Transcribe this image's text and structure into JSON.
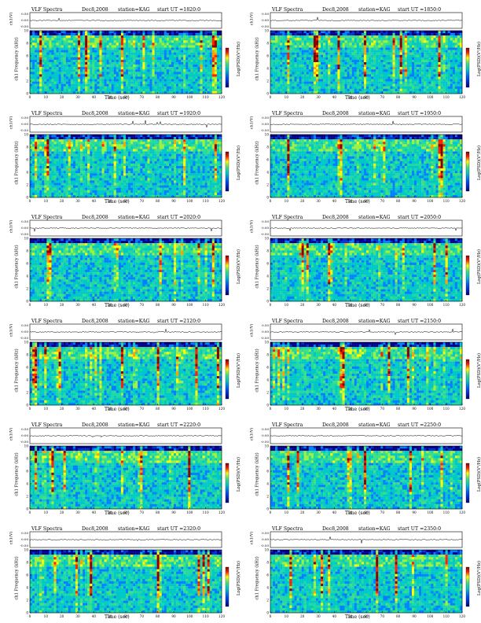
{
  "header": {
    "title": "VLF Spectra",
    "date": "Dec8,2008",
    "station": "station=KAG",
    "start_prefix": "start  UT  ="
  },
  "labels": {
    "ch_axis": "ch1(V)",
    "freq_axis": "Frequency (kHz)",
    "ch_label": "ch1",
    "colorbar": "Log(PSD)(V²/Hz)",
    "time_axis": "Time  (sec)"
  },
  "colors": {
    "low": "#00008b",
    "mid": "#00c8c8",
    "high": "#ffff00",
    "peak": "#8b0000"
  },
  "chart_data": [
    {
      "type": "heatmap",
      "start": "1820:0",
      "xlim": [
        0,
        120
      ],
      "ylim": [
        0,
        10
      ],
      "ch_ticks": [
        "0.50",
        "0.00",
        "-0.50"
      ],
      "x_ticks": [
        0,
        10,
        20,
        30,
        40,
        50,
        60,
        70,
        80,
        90,
        100,
        110,
        120
      ],
      "y_ticks": [
        0,
        2,
        4,
        6,
        8,
        10
      ]
    },
    {
      "type": "heatmap",
      "start": "1850:0",
      "xlim": [
        0,
        120
      ],
      "ylim": [
        0,
        10
      ],
      "ch_ticks": [
        "0.50",
        "0.00",
        "-0.50"
      ],
      "x_ticks": [
        0,
        10,
        20,
        30,
        40,
        50,
        60,
        70,
        80,
        90,
        100,
        110,
        120
      ],
      "y_ticks": [
        0,
        2,
        4,
        6,
        8,
        10
      ]
    },
    {
      "type": "heatmap",
      "start": "1920:0",
      "xlim": [
        0,
        120
      ],
      "ylim": [
        0,
        10
      ],
      "ch_ticks": [
        "0.50",
        "0.00",
        "-0.50"
      ],
      "x_ticks": [
        0,
        10,
        20,
        30,
        40,
        50,
        60,
        70,
        80,
        90,
        100,
        110,
        120
      ],
      "y_ticks": [
        0,
        2,
        4,
        6,
        8,
        10
      ]
    },
    {
      "type": "heatmap",
      "start": "1950:0",
      "xlim": [
        0,
        120
      ],
      "ylim": [
        0,
        10
      ],
      "ch_ticks": [
        "0.50",
        "0.00",
        "-0.50"
      ],
      "x_ticks": [
        0,
        10,
        20,
        30,
        40,
        50,
        60,
        70,
        80,
        90,
        100,
        110,
        120
      ],
      "y_ticks": [
        0,
        2,
        4,
        6,
        8,
        10
      ]
    },
    {
      "type": "heatmap",
      "start": "2020:0",
      "xlim": [
        0,
        120
      ],
      "ylim": [
        0,
        10
      ],
      "ch_ticks": [
        "0.50",
        "0.00",
        "-0.50"
      ],
      "x_ticks": [
        0,
        10,
        20,
        30,
        40,
        50,
        60,
        70,
        80,
        90,
        100,
        110,
        120
      ],
      "y_ticks": [
        0,
        2,
        4,
        6,
        8,
        10
      ]
    },
    {
      "type": "heatmap",
      "start": "2050:0",
      "xlim": [
        0,
        120
      ],
      "ylim": [
        0,
        10
      ],
      "ch_ticks": [
        "0.50",
        "0.00",
        "-0.50"
      ],
      "x_ticks": [
        0,
        10,
        20,
        30,
        40,
        50,
        60,
        70,
        80,
        90,
        100,
        110,
        120
      ],
      "y_ticks": [
        0,
        2,
        4,
        6,
        8,
        10
      ]
    },
    {
      "type": "heatmap",
      "start": "2120:0",
      "xlim": [
        0,
        120
      ],
      "ylim": [
        0,
        10
      ],
      "ch_ticks": [
        "0.50",
        "0.00",
        "-0.50"
      ],
      "x_ticks": [
        0,
        10,
        20,
        30,
        40,
        50,
        60,
        70,
        80,
        90,
        100,
        110,
        120
      ],
      "y_ticks": [
        0,
        2,
        4,
        6,
        8,
        10
      ]
    },
    {
      "type": "heatmap",
      "start": "2150:0",
      "xlim": [
        0,
        120
      ],
      "ylim": [
        0,
        10
      ],
      "ch_ticks": [
        "0.50",
        "0.00",
        "-0.50"
      ],
      "x_ticks": [
        0,
        10,
        20,
        30,
        40,
        50,
        60,
        70,
        80,
        90,
        100,
        110,
        120
      ],
      "y_ticks": [
        0,
        2,
        4,
        6,
        8,
        10
      ]
    },
    {
      "type": "heatmap",
      "start": "2220:0",
      "xlim": [
        0,
        120
      ],
      "ylim": [
        0,
        10
      ],
      "ch_ticks": [
        "0.50",
        "0.00",
        "-0.50"
      ],
      "x_ticks": [
        0,
        10,
        20,
        30,
        40,
        50,
        60,
        70,
        80,
        90,
        100,
        110,
        120
      ],
      "y_ticks": [
        0,
        2,
        4,
        6,
        8,
        10
      ]
    },
    {
      "type": "heatmap",
      "start": "2250:0",
      "xlim": [
        0,
        120
      ],
      "ylim": [
        0,
        10
      ],
      "ch_ticks": [
        "0.50",
        "0.00",
        "-0.50"
      ],
      "x_ticks": [
        0,
        10,
        20,
        30,
        40,
        50,
        60,
        70,
        80,
        90,
        100,
        110,
        120
      ],
      "y_ticks": [
        0,
        2,
        4,
        6,
        8,
        10
      ]
    },
    {
      "type": "heatmap",
      "start": "2320:0",
      "xlim": [
        0,
        120
      ],
      "ylim": [
        0,
        10
      ],
      "ch_ticks": [
        "0.50",
        "0.00",
        "-0.50"
      ],
      "x_ticks": [
        0,
        10,
        20,
        30,
        40,
        50,
        60,
        70,
        80,
        90,
        100,
        110,
        120
      ],
      "y_ticks": [
        0,
        2,
        4,
        6,
        8,
        10
      ]
    },
    {
      "type": "heatmap",
      "start": "2350:0",
      "xlim": [
        0,
        120
      ],
      "ylim": [
        0,
        10
      ],
      "ch_ticks": [
        "0.50",
        "0.00",
        "-0.50"
      ],
      "x_ticks": [
        0,
        10,
        20,
        30,
        40,
        50,
        60,
        70,
        80,
        90,
        100,
        110,
        120
      ],
      "y_ticks": [
        0,
        2,
        4,
        6,
        8,
        10
      ]
    }
  ]
}
